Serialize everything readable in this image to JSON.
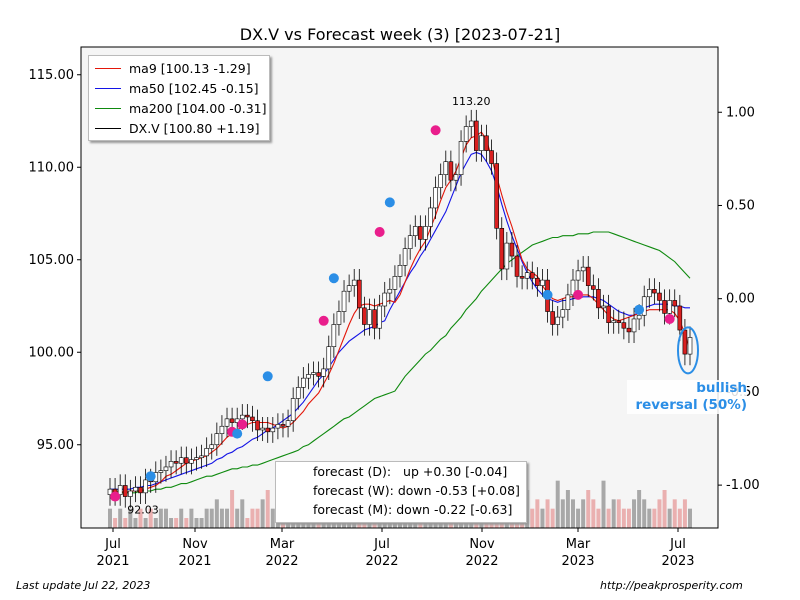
{
  "chart_data": {
    "type": "candlestick",
    "title": "DX.V vs Forecast week (3) [2023-07-21]",
    "xlabel": "",
    "ylabel": "",
    "x_ticks": [
      "Jul\n2021",
      "Nov\n2021",
      "Mar\n2022",
      "Jul\n2022",
      "Nov\n2022",
      "Mar\n2023",
      "Jul\n2023"
    ],
    "ylim": [
      90.5,
      116.5
    ],
    "y_ticks": [
      "95.00",
      "100.00",
      "105.00",
      "110.00",
      "115.00"
    ],
    "y2lim": [
      -1.23,
      1.35
    ],
    "y2_ticks": [
      "-1.00",
      "-0.50",
      "0.00",
      "0.50",
      "1.00"
    ],
    "legend": {
      "placement": "upper-left",
      "entries": [
        {
          "label": "ma9 [100.13 -1.29]",
          "color": "#e3170a"
        },
        {
          "label": "ma50 [102.45 -0.15]",
          "color": "#1414e6"
        },
        {
          "label": "ma200 [104.00 -0.31]",
          "color": "#0f8a0f"
        },
        {
          "label": "DX.V [100.80 +1.19]",
          "color": "#000000"
        }
      ]
    },
    "annotations": {
      "high": "113.20",
      "low": "92.03"
    },
    "forecast_lines": [
      "forecast (D):   up +0.30 [-0.04]",
      "forecast (W): down -0.53 [+0.08]",
      "forecast (M): down -0.22 [-0.63]"
    ],
    "callout": [
      "bullish",
      "reversal (50%)"
    ],
    "weekly_close": [
      92.6,
      92.3,
      92.8,
      92.2,
      92.5,
      92.7,
      92.4,
      93.1,
      93.0,
      93.5,
      93.6,
      93.8,
      94.1,
      94.0,
      94.3,
      94.0,
      94.2,
      94.3,
      94.4,
      94.8,
      95.0,
      95.6,
      96.0,
      96.4,
      96.2,
      96.4,
      96.6,
      96.5,
      96.3,
      95.8,
      95.9,
      95.7,
      95.9,
      96.1,
      96.0,
      96.3,
      97.5,
      98.1,
      98.6,
      98.8,
      98.9,
      98.7,
      99.1,
      100.3,
      101.5,
      102.2,
      103.3,
      103.6,
      103.9,
      102.4,
      101.5,
      102.3,
      101.3,
      102.5,
      103.2,
      103.4,
      104.1,
      104.7,
      105.6,
      106.3,
      106.8,
      106.1,
      106.8,
      107.8,
      108.9,
      109.6,
      110.3,
      109.3,
      109.6,
      111.4,
      112.2,
      112.5,
      110.9,
      111.7,
      110.9,
      110.2,
      106.7,
      104.5,
      105.9,
      105.2,
      104.1,
      104.0,
      104.3,
      104.0,
      103.6,
      103.9,
      102.2,
      101.5,
      101.9,
      102.3,
      103.1,
      103.9,
      104.4,
      104.6,
      103.6,
      103.4,
      102.4,
      102.5,
      101.6,
      101.7,
      101.6,
      101.3,
      101.1,
      101.8,
      102.0,
      103.0,
      103.4,
      103.2,
      102.8,
      102.1,
      102.8,
      102.5,
      101.2,
      99.9,
      100.8
    ],
    "ma9": [
      92.6,
      92.4,
      92.5,
      92.4,
      92.5,
      92.5,
      92.5,
      92.6,
      92.7,
      92.8,
      93.0,
      93.3,
      93.4,
      93.6,
      93.8,
      94.0,
      94.1,
      94.2,
      94.3,
      94.4,
      94.6,
      94.8,
      95.1,
      95.4,
      95.6,
      95.8,
      96.0,
      96.1,
      96.2,
      96.2,
      96.2,
      96.2,
      96.1,
      96.0,
      95.9,
      96.0,
      96.2,
      96.5,
      96.8,
      97.2,
      97.5,
      97.8,
      98.3,
      98.8,
      99.4,
      100.1,
      100.8,
      101.5,
      102.1,
      102.5,
      102.6,
      102.6,
      102.5,
      102.6,
      102.7,
      102.8,
      102.7,
      103.1,
      103.8,
      104.5,
      105.1,
      105.6,
      106.0,
      106.7,
      107.4,
      108.2,
      108.9,
      109.3,
      109.8,
      110.5,
      111.2,
      111.6,
      111.7,
      111.9,
      111.5,
      110.5,
      109.5,
      108.5,
      107.6,
      106.8,
      105.9,
      105.0,
      104.5,
      104.3,
      104.1,
      103.6,
      103.2,
      102.9,
      102.8,
      102.9,
      103.0,
      103.0,
      103.1,
      103.1,
      103.1,
      102.9,
      102.6,
      102.3,
      102.0,
      101.8,
      101.7,
      101.8,
      101.9,
      102.0,
      102.1,
      102.2,
      102.3,
      102.3,
      102.3,
      102.3,
      102.3,
      102.1,
      101.7,
      101.0,
      100.1
    ],
    "ma50": [
      92.6,
      92.6,
      92.6,
      92.6,
      92.6,
      92.7,
      92.7,
      92.8,
      92.8,
      92.9,
      93.0,
      93.1,
      93.2,
      93.3,
      93.4,
      93.5,
      93.6,
      93.7,
      93.8,
      93.9,
      94.0,
      94.2,
      94.3,
      94.5,
      94.6,
      94.8,
      94.9,
      95.1,
      95.3,
      95.4,
      95.6,
      95.8,
      95.9,
      96.1,
      96.3,
      96.5,
      96.7,
      97.0,
      97.3,
      97.7,
      98.1,
      98.5,
      98.8,
      99.2,
      99.6,
      100.0,
      100.3,
      100.6,
      100.8,
      101.0,
      101.2,
      101.3,
      101.4,
      101.6,
      101.7,
      102.3,
      102.8,
      103.3,
      103.8,
      104.3,
      104.7,
      105.2,
      105.6,
      106.1,
      106.6,
      107.1,
      107.6,
      108.3,
      109.0,
      109.7,
      110.2,
      110.7,
      110.8,
      110.7,
      110.3,
      109.8,
      109.0,
      108.0,
      107.1,
      106.3,
      105.6,
      104.9,
      104.3,
      103.8,
      103.4,
      103.1,
      102.9,
      102.8,
      102.7,
      102.8,
      102.8,
      102.9,
      102.9,
      103.0,
      103.0,
      103.0,
      102.9,
      102.8,
      102.6,
      102.4,
      102.2,
      102.1,
      102.0,
      102.0,
      102.2,
      102.4,
      102.5,
      102.6,
      102.6,
      102.6,
      102.6,
      102.5,
      102.5,
      102.4,
      102.4
    ],
    "ma200": [
      92.4,
      92.4,
      92.4,
      92.4,
      92.4,
      92.4,
      92.5,
      92.5,
      92.5,
      92.6,
      92.6,
      92.7,
      92.7,
      92.8,
      92.9,
      92.9,
      93.0,
      93.1,
      93.2,
      93.3,
      93.3,
      93.4,
      93.5,
      93.6,
      93.7,
      93.7,
      93.8,
      93.8,
      93.9,
      93.9,
      94.0,
      94.1,
      94.2,
      94.3,
      94.4,
      94.5,
      94.6,
      94.7,
      94.9,
      95.0,
      95.2,
      95.4,
      95.6,
      95.8,
      96.0,
      96.2,
      96.4,
      96.5,
      96.7,
      96.9,
      97.1,
      97.3,
      97.5,
      97.6,
      97.7,
      97.8,
      97.9,
      98.3,
      98.7,
      99.0,
      99.3,
      99.6,
      99.9,
      100.1,
      100.4,
      100.7,
      100.9,
      101.3,
      101.6,
      101.9,
      102.3,
      102.6,
      102.9,
      103.3,
      103.6,
      103.9,
      104.2,
      104.5,
      104.8,
      105.0,
      105.2,
      105.4,
      105.6,
      105.8,
      105.9,
      106.0,
      106.1,
      106.2,
      106.2,
      106.3,
      106.3,
      106.3,
      106.4,
      106.4,
      106.4,
      106.5,
      106.5,
      106.5,
      106.5,
      106.4,
      106.3,
      106.2,
      106.1,
      106.0,
      105.9,
      105.8,
      105.7,
      105.6,
      105.5,
      105.3,
      105.1,
      104.9,
      104.6,
      104.3,
      104.0
    ],
    "volume": [
      1,
      0,
      1,
      0,
      1,
      0,
      1,
      0,
      1,
      0,
      1,
      1,
      0,
      0,
      1,
      0,
      1,
      0,
      0,
      1,
      1,
      2,
      1,
      1,
      3,
      1,
      2,
      0,
      1,
      1,
      2,
      3,
      1,
      1,
      2,
      1,
      3,
      2,
      1,
      2,
      1,
      1,
      0,
      2,
      3,
      1,
      2,
      4,
      1,
      2,
      1,
      3,
      1,
      0,
      2,
      2,
      1,
      1,
      3,
      1,
      2,
      1,
      2,
      1,
      5,
      3,
      1,
      2,
      1,
      4,
      6,
      2,
      3,
      2,
      1,
      2,
      3,
      2,
      1,
      4,
      2,
      1,
      3,
      1,
      2,
      1,
      2,
      1,
      4,
      2,
      3,
      2,
      1,
      2,
      3,
      2,
      1,
      4,
      1,
      2,
      2,
      1,
      1,
      2,
      3,
      2,
      1,
      1,
      2,
      3,
      1,
      2,
      1,
      2,
      1
    ],
    "markers": [
      {
        "week": 1,
        "value": 92.2,
        "color": "#e91e8c"
      },
      {
        "week": 11,
        "value": 93.3,
        "color": "#2b8ee6"
      },
      {
        "week": 33,
        "value": 95.7,
        "color": "#e91e8c"
      },
      {
        "week": 35,
        "value": 95.6,
        "color": "#2b8ee6"
      },
      {
        "week": 36,
        "value": 96.1,
        "color": "#e91e8c"
      },
      {
        "week": 44,
        "value": 98.7,
        "color": "#2b8ee6"
      },
      {
        "week": 59,
        "value": 101.7,
        "color": "#e91e8c"
      },
      {
        "week": 62,
        "value": 104.0,
        "color": "#2b8ee6"
      },
      {
        "week": 74,
        "value": 106.5,
        "color": "#e91e8c"
      },
      {
        "week": 77,
        "value": 108.1,
        "color": "#2b8ee6"
      },
      {
        "week": 90,
        "value": 112.0,
        "color": "#e91e8c"
      },
      {
        "week": 121,
        "value": 103.1,
        "color": "#2b8ee6"
      },
      {
        "week": 129,
        "value": 103.1,
        "color": "#e91e8c"
      },
      {
        "week": 146,
        "value": 102.3,
        "color": "#2b8ee6"
      },
      {
        "week": 155,
        "value": 101.8,
        "color": "#e91e8c"
      }
    ]
  },
  "footer": {
    "left": "Last update Jul 22, 2023",
    "right": "http://peakprosperity.com"
  }
}
